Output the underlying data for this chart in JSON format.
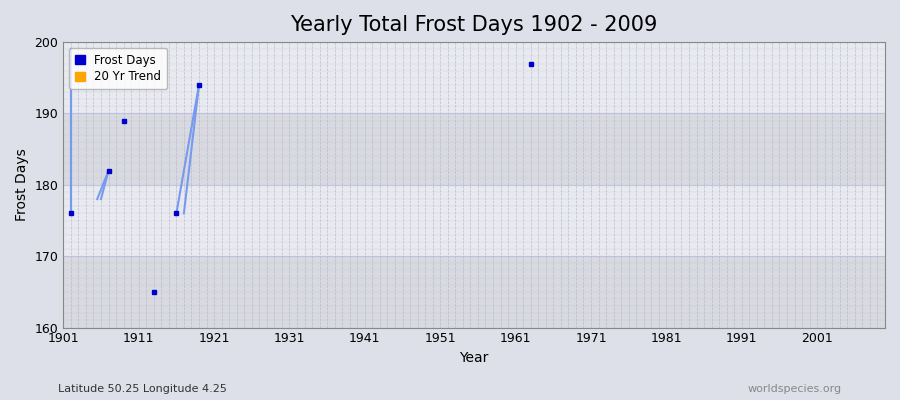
{
  "title": "Yearly Total Frost Days 1902 - 2009",
  "xlabel": "Year",
  "ylabel": "Frost Days",
  "subtitle_left": "Latitude 50.25 Longitude 4.25",
  "subtitle_right": "worldspecies.org",
  "ylim": [
    160,
    200
  ],
  "xlim": [
    1901,
    2010
  ],
  "xticks": [
    1901,
    1911,
    1921,
    1931,
    1941,
    1951,
    1961,
    1971,
    1981,
    1991,
    2001
  ],
  "xtick_labels": [
    "1901",
    "1911",
    "1921",
    "1931",
    "1941",
    "1951",
    "1961",
    "1971",
    "1981",
    "1991",
    "2001"
  ],
  "yticks": [
    160,
    170,
    180,
    190,
    200
  ],
  "data_points": [
    {
      "year": 1902,
      "value": 176
    },
    {
      "year": 1907,
      "value": 182
    },
    {
      "year": 1909,
      "value": 189
    },
    {
      "year": 1913,
      "value": 165
    },
    {
      "year": 1916,
      "value": 176
    },
    {
      "year": 1919,
      "value": 194
    },
    {
      "year": 1963,
      "value": 197
    }
  ],
  "line_segments": [
    [
      [
        1902,
        176
      ],
      [
        1902,
        199
      ]
    ],
    [
      [
        1906,
        178
      ],
      [
        1907,
        182
      ]
    ],
    [
      [
        1916,
        176
      ],
      [
        1919,
        194
      ]
    ]
  ],
  "point_color": "#0000cc",
  "line_color": "#7799ee",
  "bg_color": "#dde0e8",
  "plot_bg_light": "#e8eaef",
  "plot_bg_dark": "#d8dae0",
  "grid_color": "#aaaacc",
  "legend_labels": [
    "Frost Days",
    "20 Yr Trend"
  ],
  "legend_colors": [
    "#0000cc",
    "#ffa500"
  ],
  "band_ranges": [
    [
      160,
      170
    ],
    [
      180,
      190
    ]
  ],
  "title_fontsize": 15,
  "axis_label_fontsize": 10,
  "tick_fontsize": 9,
  "subtitle_fontsize": 8
}
